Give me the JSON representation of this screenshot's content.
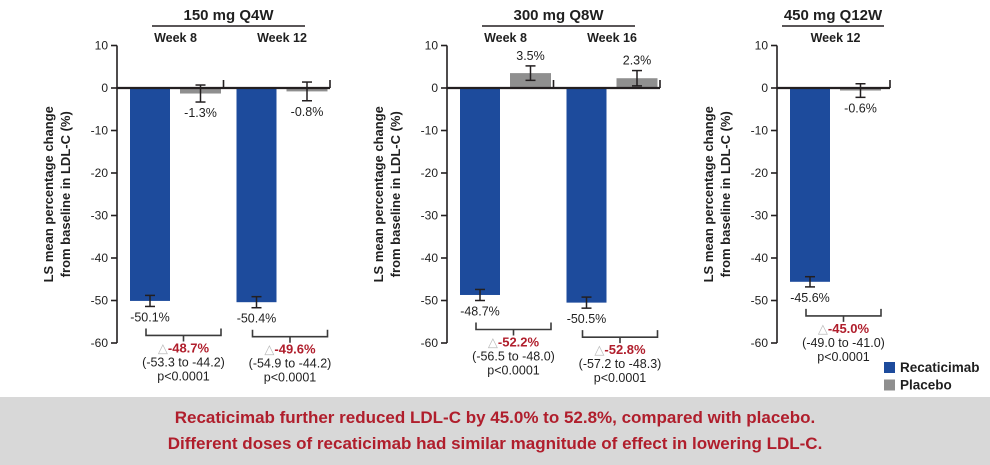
{
  "banner": {
    "line1": "Recaticimab further reduced LDL-C by 45.0% to 52.8%, compared with placebo.",
    "line2": "Different doses of recaticimab had similar magnitude of effect in lowering LDL-C.",
    "text_color": "#b01e2c",
    "background": "#d8d8d8"
  },
  "legend": {
    "position": "bottom-right",
    "items": [
      {
        "label": "Recaticimab",
        "color": "#1d4b9c"
      },
      {
        "label": "Placebo",
        "color": "#8f8f8f"
      }
    ]
  },
  "chart_data": {
    "type": "bar",
    "ylabel_line1": "LS mean percentage change",
    "ylabel_line2": "from baseline in LDL-C (%)",
    "ylim": [
      -60,
      10
    ],
    "ytick_step": 10,
    "grid": false,
    "series": [
      "Recaticimab",
      "Placebo"
    ],
    "colors": {
      "recaticimab": "#1d4b9c",
      "placebo": "#8f8f8f",
      "axis": "#231f20",
      "difference": "#b01e2c",
      "triangle": "#bbbbbb"
    },
    "panels": [
      {
        "title": "150 mg Q4W",
        "groups": [
          {
            "week": "Week 8",
            "recaticimab": {
              "value": -50.1,
              "label": "-50.1%",
              "err": 1.3
            },
            "placebo": {
              "value": -1.3,
              "label": "-1.3%",
              "err": 2.0
            },
            "difference": {
              "delta": "-48.7%",
              "ci": "(-53.3 to -44.2)",
              "p": "p<0.0001"
            }
          },
          {
            "week": "Week 12",
            "recaticimab": {
              "value": -50.4,
              "label": "-50.4%",
              "err": 1.3
            },
            "placebo": {
              "value": -0.8,
              "label": "-0.8%",
              "err": 2.2
            },
            "difference": {
              "delta": "-49.6%",
              "ci": "(-54.9 to -44.2)",
              "p": "p<0.0001"
            }
          }
        ]
      },
      {
        "title": "300 mg Q8W",
        "groups": [
          {
            "week": "Week 8",
            "recaticimab": {
              "value": -48.7,
              "label": "-48.7%",
              "err": 1.3
            },
            "placebo": {
              "value": 3.5,
              "label": "3.5%",
              "err": 1.7
            },
            "difference": {
              "delta": "-52.2%",
              "ci": "(-56.5 to -48.0)",
              "p": "p<0.0001"
            }
          },
          {
            "week": "Week 16",
            "recaticimab": {
              "value": -50.5,
              "label": "-50.5%",
              "err": 1.3
            },
            "placebo": {
              "value": 2.3,
              "label": "2.3%",
              "err": 1.8
            },
            "difference": {
              "delta": "-52.8%",
              "ci": "(-57.2 to -48.3)",
              "p": "p<0.0001"
            }
          }
        ]
      },
      {
        "title": "450 mg Q12W",
        "groups": [
          {
            "week": "Week 12",
            "recaticimab": {
              "value": -45.6,
              "label": "-45.6%",
              "err": 1.2
            },
            "placebo": {
              "value": -0.6,
              "label": "-0.6%",
              "err": 1.6
            },
            "difference": {
              "delta": "-45.0%",
              "ci": "(-49.0 to -41.0)",
              "p": "p<0.0001"
            }
          }
        ]
      }
    ]
  }
}
